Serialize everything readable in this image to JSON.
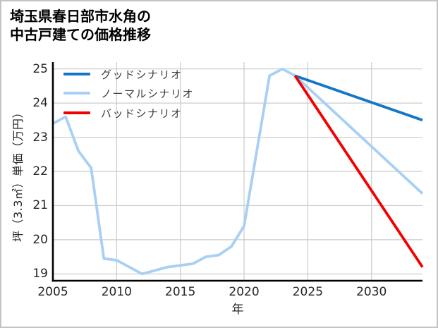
{
  "chart_data": {
    "type": "line",
    "title": "埼玉県春日部市水角の中古戸建ての価格推移",
    "title_lines": [
      "埼玉県春日部市水角の",
      "中古戸建ての価格推移"
    ],
    "xlabel": "年",
    "ylabel": "坪（3.3㎡）単価（万円）",
    "xlim": [
      2005,
      2034
    ],
    "ylim": [
      18.8,
      25.2
    ],
    "x_ticks": [
      "2005",
      "2010",
      "2015",
      "2020",
      "2025",
      "2030"
    ],
    "x_tick_values": [
      2005,
      2010,
      2015,
      2020,
      2025,
      2030
    ],
    "y_ticks": [
      "19",
      "20",
      "21",
      "22",
      "23",
      "24",
      "25"
    ],
    "y_tick_values": [
      19,
      20,
      21,
      22,
      23,
      24,
      25
    ],
    "grid": true,
    "grid_color": "#cccccc",
    "axis_color": "#000000",
    "legend_position": "upper-left",
    "series": [
      {
        "name": "グッドシナリオ",
        "color": "#1476c6",
        "x": [
          2024,
          2034
        ],
        "y": [
          24.8,
          23.5
        ]
      },
      {
        "name": "ノーマルシナリオ",
        "color": "#a8d0f5",
        "x": [
          2005,
          2006,
          2007,
          2008,
          2009,
          2010,
          2011,
          2012,
          2013,
          2014,
          2015,
          2016,
          2017,
          2018,
          2019,
          2020,
          2021,
          2022,
          2023,
          2024,
          2034
        ],
        "y": [
          23.4,
          23.6,
          22.6,
          22.1,
          19.45,
          19.4,
          19.2,
          19.0,
          19.1,
          19.2,
          19.25,
          19.3,
          19.5,
          19.55,
          19.8,
          20.4,
          22.6,
          24.8,
          25.0,
          24.8,
          21.35
        ]
      },
      {
        "name": "バッドシナリオ",
        "color": "#f20000",
        "x": [
          2024,
          2034
        ],
        "y": [
          24.8,
          19.2
        ]
      }
    ]
  }
}
